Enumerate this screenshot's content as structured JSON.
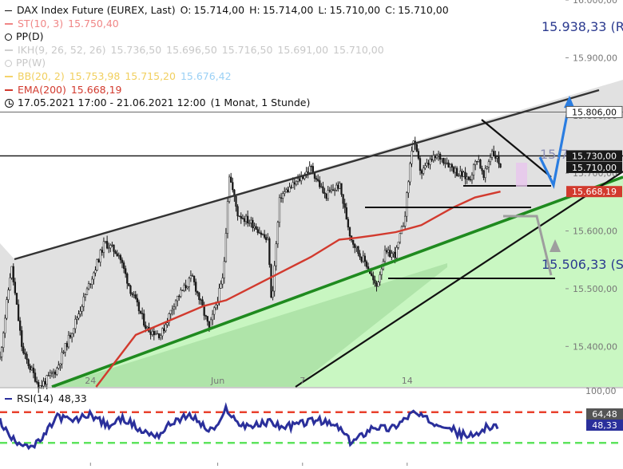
{
  "colors": {
    "candle": "#1a1a1a",
    "ema": "#d23a2e",
    "channel_fill": "#dedede",
    "channel_line": "#333333",
    "support_line": "#1f8a1f",
    "green_fill": "#c6f7bf",
    "arrow_up": "#2a7de1",
    "arrow_down": "#9e9e9e",
    "rsi_line": "#2a2f9b",
    "rsi_upper": "#e8402c",
    "rsi_lower": "#5ee35e",
    "st": "#f08080",
    "ikh": "#cfcfcf",
    "bb": "#f5d36b",
    "bb_low": "#9ad0f5",
    "pp_marker": "#444444"
  },
  "legend": {
    "title": "DAX Index Future (EUREX, Last)",
    "o_label": "O:",
    "o": "15.714,00",
    "h_label": "H:",
    "h": "15.714,00",
    "l_label": "L:",
    "l": "15.710,00",
    "c_label": "C:",
    "c": "15.710,00",
    "st_label": "ST(10, 3)",
    "st_value": "15.750,40",
    "pp_label": "PP(D)",
    "ikh_label": "IKH(9, 26, 52, 26)",
    "ikh_values": [
      "15.736,50",
      "15.696,50",
      "15.716,50",
      "15.691,00",
      "15.710,00"
    ],
    "ppw_label": "PP(W)",
    "bb_label": "BB(20, 2)",
    "bb_values": [
      "15.753,98",
      "15.715,20",
      "15.676,42"
    ],
    "ema_label": "EMA(200)",
    "ema_value": "15.668,19",
    "period": "17.05.2021 17:00 - 21.06.2021 12:00",
    "period_note": "(1 Monat, 1 Stunde)"
  },
  "annotations": {
    "r3": "15.938,33 (R3)",
    "s3": "15.506,33 (S3)",
    "cut_label": "15.7"
  },
  "chart_data": {
    "type": "candlestick",
    "price_axis": {
      "ylim": [
        15330,
        16000
      ],
      "ticks": [
        "16.000,00",
        "15.900,00",
        "15.800,00",
        "15.700,00",
        "15.600,00",
        "15.500,00",
        "15.400,00"
      ],
      "tick_values": [
        16000,
        15900,
        15800,
        15700,
        15600,
        15500,
        15400
      ],
      "price_labels": [
        {
          "value": 15806,
          "text": "15.806,00",
          "style": "boxed"
        },
        {
          "value": 15730,
          "text": "15.730,00",
          "style": "dark"
        },
        {
          "value": 15710,
          "text": "15.710,00",
          "style": "dark"
        },
        {
          "value": 15668.19,
          "text": "15.668,19",
          "style": "ema"
        }
      ]
    },
    "x_ticks": [
      "24",
      "Jun",
      "7",
      "14"
    ],
    "x_tick_positions": [
      0.16,
      0.385,
      0.535,
      0.72
    ],
    "ohlc_anchors": [
      [
        0,
        15380
      ],
      [
        0.02,
        15540
      ],
      [
        0.04,
        15390
      ],
      [
        0.07,
        15330
      ],
      [
        0.1,
        15360
      ],
      [
        0.14,
        15460
      ],
      [
        0.185,
        15580
      ],
      [
        0.21,
        15560
      ],
      [
        0.23,
        15500
      ],
      [
        0.26,
        15430
      ],
      [
        0.285,
        15420
      ],
      [
        0.31,
        15480
      ],
      [
        0.34,
        15520
      ],
      [
        0.37,
        15430
      ],
      [
        0.395,
        15520
      ],
      [
        0.405,
        15700
      ],
      [
        0.42,
        15630
      ],
      [
        0.45,
        15610
      ],
      [
        0.475,
        15580
      ],
      [
        0.48,
        15470
      ],
      [
        0.495,
        15660
      ],
      [
        0.52,
        15680
      ],
      [
        0.55,
        15710
      ],
      [
        0.575,
        15660
      ],
      [
        0.6,
        15680
      ],
      [
        0.62,
        15590
      ],
      [
        0.635,
        15560
      ],
      [
        0.65,
        15540
      ],
      [
        0.665,
        15500
      ],
      [
        0.68,
        15560
      ],
      [
        0.7,
        15560
      ],
      [
        0.715,
        15620
      ],
      [
        0.73,
        15760
      ],
      [
        0.745,
        15700
      ],
      [
        0.76,
        15720
      ],
      [
        0.775,
        15730
      ],
      [
        0.79,
        15720
      ],
      [
        0.81,
        15700
      ],
      [
        0.83,
        15690
      ],
      [
        0.845,
        15730
      ],
      [
        0.855,
        15690
      ],
      [
        0.87,
        15740
      ],
      [
        0.885,
        15714
      ]
    ],
    "ema200": [
      [
        0.17,
        15330
      ],
      [
        0.24,
        15420
      ],
      [
        0.3,
        15445
      ],
      [
        0.36,
        15470
      ],
      [
        0.4,
        15480
      ],
      [
        0.46,
        15510
      ],
      [
        0.5,
        15530
      ],
      [
        0.55,
        15555
      ],
      [
        0.6,
        15585
      ],
      [
        0.63,
        15588
      ],
      [
        0.66,
        15592
      ],
      [
        0.7,
        15598
      ],
      [
        0.745,
        15610
      ],
      [
        0.8,
        15640
      ],
      [
        0.84,
        15658
      ],
      [
        0.885,
        15668.19
      ]
    ],
    "horizontal_levels": [
      15806,
      15730
    ],
    "rsi": {
      "label": "RSI(14)",
      "value_text": "48,33",
      "ylim": [
        0,
        100
      ],
      "ticks": [
        "100,00"
      ],
      "tick_values": [
        100
      ],
      "upper": 70,
      "lower": 30,
      "badge_upper": "64,48",
      "badge_value": "48,33",
      "anchors": [
        [
          0,
          58
        ],
        [
          0.02,
          35
        ],
        [
          0.04,
          30
        ],
        [
          0.06,
          25
        ],
        [
          0.08,
          40
        ],
        [
          0.1,
          65
        ],
        [
          0.13,
          58
        ],
        [
          0.16,
          68
        ],
        [
          0.19,
          52
        ],
        [
          0.22,
          62
        ],
        [
          0.25,
          45
        ],
        [
          0.28,
          40
        ],
        [
          0.31,
          60
        ],
        [
          0.34,
          65
        ],
        [
          0.37,
          45
        ],
        [
          0.39,
          55
        ],
        [
          0.4,
          76
        ],
        [
          0.42,
          55
        ],
        [
          0.45,
          52
        ],
        [
          0.48,
          58
        ],
        [
          0.5,
          50
        ],
        [
          0.53,
          55
        ],
        [
          0.56,
          60
        ],
        [
          0.6,
          50
        ],
        [
          0.62,
          30
        ],
        [
          0.64,
          40
        ],
        [
          0.66,
          52
        ],
        [
          0.69,
          48
        ],
        [
          0.71,
          58
        ],
        [
          0.73,
          70
        ],
        [
          0.76,
          58
        ],
        [
          0.79,
          54
        ],
        [
          0.81,
          42
        ],
        [
          0.84,
          38
        ],
        [
          0.86,
          52
        ],
        [
          0.88,
          48.33
        ]
      ]
    }
  }
}
